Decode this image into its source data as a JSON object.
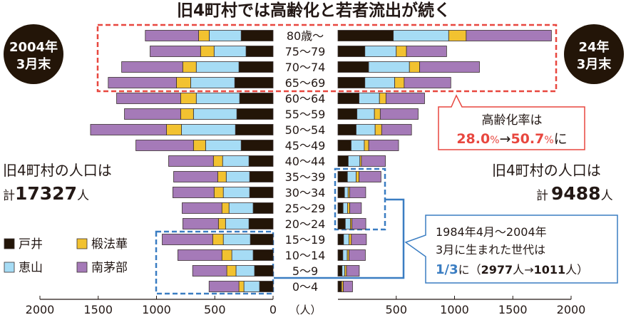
{
  "title": "旧4町村では高齢化と若者流出が続く",
  "badges": {
    "left": [
      "2004年",
      "3月末"
    ],
    "right": [
      "24年",
      "3月末"
    ]
  },
  "totals": {
    "left_caption": "旧4町村の人口は",
    "left_prefix": "計",
    "left_value": "17327",
    "left_unit": "人",
    "right_caption": "旧4町村の人口は",
    "right_prefix": "計",
    "right_value": "9488",
    "right_unit": "人"
  },
  "aging_callout": {
    "line1": "高齢化率は",
    "from": "28.0",
    "pct1": "%",
    "arrow": "→",
    "to": "50.7",
    "pct2": "%",
    "suffix": "に"
  },
  "youth_callout": {
    "line1": "1984年4月～2004年",
    "line2": "3月に生まれた世代は",
    "fraction": "1/3",
    "mid": "に（",
    "from": "2977",
    "unit1": "人",
    "arrow": "→",
    "to": "1011",
    "unit2": "人）"
  },
  "legend": [
    {
      "label": "戸井",
      "color": "#231508"
    },
    {
      "label": "椴法華",
      "color": "#f2c230"
    },
    {
      "label": "恵山",
      "color": "#a6dcf5"
    },
    {
      "label": "南茅部",
      "color": "#a57ab8"
    }
  ],
  "colors": {
    "red": "#e8473f",
    "blue": "#3a7dc2",
    "text": "#231815"
  },
  "chart_data": {
    "type": "bar",
    "subtype": "population-pyramid-stacked",
    "categories": [
      "80歳～",
      "75～79",
      "70～74",
      "65～69",
      "60～64",
      "55～59",
      "50～54",
      "45～49",
      "40～44",
      "35～39",
      "30～34",
      "25～29",
      "20～24",
      "15～19",
      "10～14",
      "5～9",
      "0～4"
    ],
    "series_order": [
      "戸井",
      "恵山",
      "椴法華",
      "南茅部"
    ],
    "left": {
      "label": "2004年3月末",
      "series": [
        {
          "name": "戸井",
          "values": [
            274,
            232,
            293,
            329,
            287,
            311,
            323,
            274,
            207,
            201,
            201,
            171,
            207,
            195,
            171,
            159,
            116
          ]
        },
        {
          "name": "恵山",
          "values": [
            274,
            274,
            366,
            378,
            372,
            372,
            463,
            305,
            226,
            201,
            226,
            207,
            201,
            232,
            183,
            159,
            134
          ]
        },
        {
          "name": "椴法華",
          "values": [
            91,
            116,
            116,
            122,
            134,
            110,
            128,
            104,
            79,
            73,
            79,
            61,
            61,
            91,
            85,
            79,
            43
          ]
        },
        {
          "name": "南茅部",
          "values": [
            457,
            433,
            524,
            585,
            549,
            482,
            652,
            494,
            384,
            378,
            354,
            341,
            305,
            433,
            378,
            293,
            256
          ]
        }
      ]
    },
    "right": {
      "label": "24年3月末",
      "series": [
        {
          "name": "戸井",
          "values": [
            475,
            231,
            263,
            231,
            181,
            163,
            156,
            113,
            88,
            81,
            56,
            44,
            63,
            48,
            42,
            35,
            27
          ]
        },
        {
          "name": "恵山",
          "values": [
            475,
            269,
            350,
            256,
            175,
            150,
            163,
            113,
            100,
            75,
            31,
            38,
            44,
            46,
            38,
            23,
            4
          ]
        },
        {
          "name": "椴法華",
          "values": [
            150,
            88,
            88,
            81,
            56,
            50,
            56,
            38,
            13,
            25,
            13,
            19,
            13,
            21,
            15,
            15,
            15
          ]
        },
        {
          "name": "南茅部",
          "values": [
            731,
            344,
            513,
            400,
            331,
            325,
            256,
            256,
            206,
            188,
            138,
            100,
            119,
            129,
            140,
            110,
            79
          ]
        }
      ]
    },
    "x_axis": {
      "left_ticks": [
        "2000",
        "1500",
        "1000",
        "500",
        "0"
      ],
      "right_ticks": [
        "500",
        "1000",
        "1500",
        "2000"
      ],
      "unit": "（人）",
      "range": [
        0,
        2000
      ]
    },
    "grid": false
  }
}
